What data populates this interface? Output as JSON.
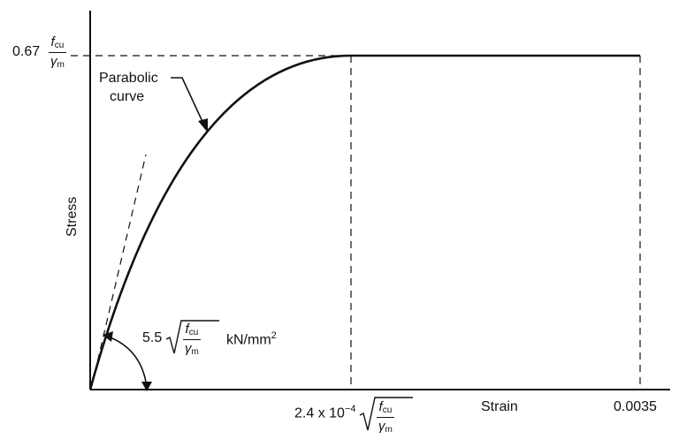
{
  "labels": {
    "y_axis": "Stress",
    "x_axis": "Strain",
    "peak_coef": "0.67",
    "fcu_num": "f",
    "fcu_sub": "cu",
    "gamma_den": "γ",
    "gamma_sub": "m",
    "curve_name_line1": "Parabolic",
    "curve_name_line2": "curve",
    "slope_coef": "5.5",
    "slope_unit": "kN/mm",
    "slope_unit_exp": "2",
    "strain_peak_coef": "2.4 x 10",
    "strain_peak_exp": "−4",
    "strain_ult": "0.0035"
  },
  "colors": {
    "ink": "#111111",
    "background": "#ffffff"
  }
}
